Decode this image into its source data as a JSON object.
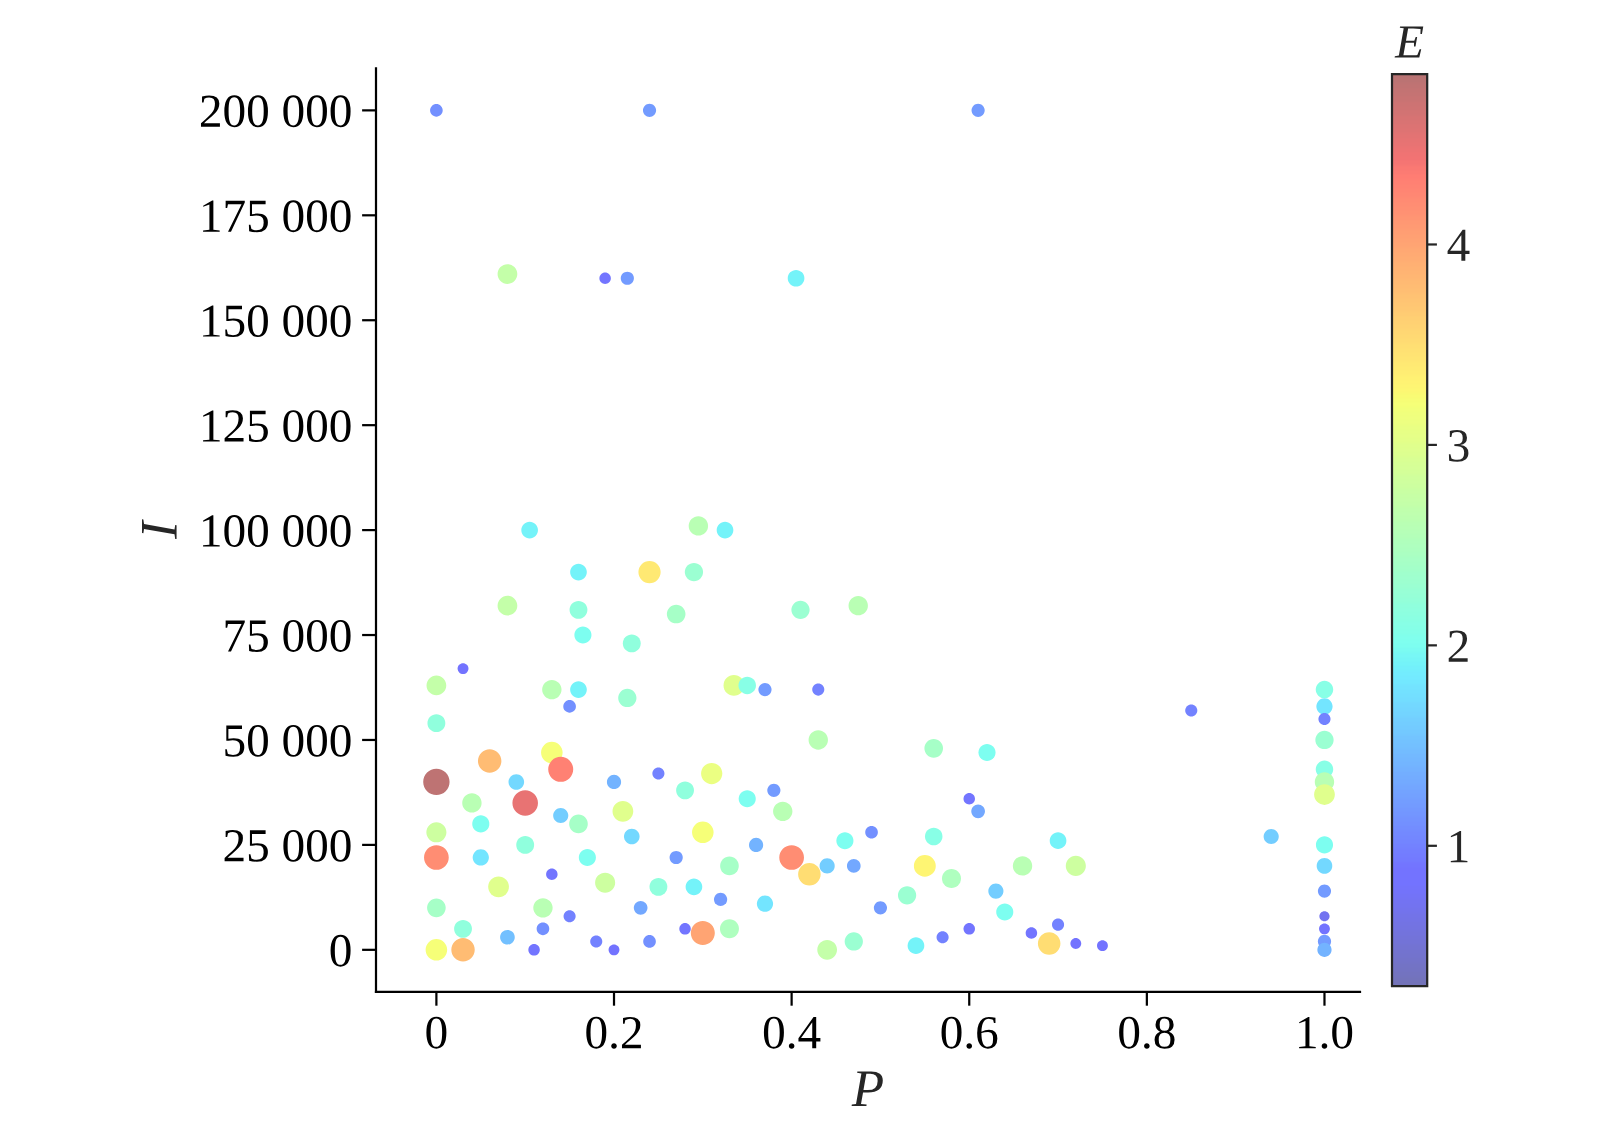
{
  "chart_data": {
    "type": "bubble",
    "sizes": [
      0.23,
      0.25,
      0.25,
      0.56,
      0.19,
      0.25,
      0.4,
      0.4,
      0.54,
      0.4,
      0.4,
      0.71,
      0.48,
      0.56,
      0.46,
      0.5,
      0.48,
      0.54,
      0.42,
      0.46,
      0.17,
      0.56,
      0.46,
      0.54,
      0.4,
      0.48,
      0.23,
      0.62,
      0.44,
      0.25,
      0.21,
      0.54,
      0.5,
      0.42,
      0.21,
      0.33,
      0.44,
      0.38,
      0.21,
      0.48,
      0.44,
      0.54,
      0.62,
      0.42,
      0.35,
      0.25,
      0.15,
      0.17,
      0.25,
      0.29,
      0.4,
      0.58,
      0.54,
      0.27,
      0.19,
      0.69,
      0.44,
      0.52,
      0.33,
      0.48,
      0.42,
      0.19,
      0.73,
      0.17,
      0.17,
      0.21,
      0.19,
      0.21,
      0.4,
      0.48,
      0.56,
      0.25,
      0.23,
      0.27,
      0.42,
      0.88,
      0.73,
      0.25,
      0.42,
      0.54,
      0.33,
      0.38,
      0.52,
      0.83,
      0.25,
      1,
      0.88,
      0.58,
      0.5,
      0.67,
      0.79,
      0.94,
      0.79,
      0.67,
      0.9,
      0.62,
      0.42,
      0.46,
      0.19,
      0.21,
      0.21,
      0.17,
      0.31,
      0.54,
      0.5,
      0.29,
      0.35,
      0.46,
      0.21,
      0.46,
      0.67,
      0.25,
      0.27,
      0.19,
      0.38,
      0.46,
      0.19,
      0.33,
      0.58,
      0.35,
      0.5,
      0.29,
      0.23,
      0.42,
      0.54,
      0.62,
      0.23,
      0.65,
      0.4
    ],
    "xlabel": "P",
    "ylabel": "I",
    "clabel": "E",
    "x": [
      0.0,
      0.24,
      0.61,
      0.08,
      0.19,
      0.215,
      0.405,
      0.105,
      0.295,
      0.325,
      0.16,
      0.24,
      0.29,
      0.08,
      0.16,
      0.27,
      0.41,
      0.475,
      0.165,
      0.22,
      0.03,
      0.0,
      0.0,
      0.13,
      0.16,
      0.215,
      0.15,
      0.335,
      0.35,
      0.37,
      0.43,
      0.43,
      0.56,
      0.62,
      0.85,
      0.94,
      1.0,
      1.0,
      1.0,
      1.0,
      1.0,
      1.0,
      1.0,
      1.0,
      1.0,
      1.0,
      1.0,
      1.0,
      1.0,
      1.0,
      0.7,
      0.72,
      0.66,
      0.61,
      0.6,
      0.55,
      0.56,
      0.58,
      0.63,
      0.53,
      0.64,
      0.67,
      0.69,
      0.72,
      0.75,
      0.7,
      0.6,
      0.57,
      0.54,
      0.47,
      0.44,
      0.5,
      0.49,
      0.47,
      0.46,
      0.4,
      0.42,
      0.38,
      0.35,
      0.39,
      0.44,
      0.37,
      0.33,
      0.3,
      0.32,
      0.0,
      0.0,
      0.0,
      0.0,
      0.0,
      0.03,
      0.1,
      0.06,
      0.13,
      0.14,
      0.07,
      0.05,
      0.1,
      0.13,
      0.15,
      0.18,
      0.2,
      0.08,
      0.12,
      0.16,
      0.2,
      0.22,
      0.25,
      0.25,
      0.28,
      0.3,
      0.27,
      0.23,
      0.28,
      0.05,
      0.03,
      0.11,
      0.14,
      0.19,
      0.09,
      0.33,
      0.36,
      0.24,
      0.17,
      0.04,
      0.21,
      0.12,
      0.31,
      0.29
    ],
    "values": [
      200000,
      200000,
      200000,
      161000,
      160000,
      160000,
      160000,
      100000,
      101000,
      100000,
      90000,
      90000,
      90000,
      82000,
      81000,
      80000,
      81000,
      82000,
      75000,
      73000,
      67000,
      63000,
      54000,
      62000,
      62000,
      60000,
      58000,
      63000,
      63000,
      62000,
      62000,
      50000,
      48000,
      47000,
      57000,
      27000,
      62000,
      58000,
      55000,
      50000,
      43000,
      40000,
      37000,
      25000,
      20000,
      14000,
      8000,
      5000,
      2000,
      0,
      26000,
      20000,
      20000,
      33000,
      36000,
      20000,
      27000,
      17000,
      14000,
      13000,
      9000,
      4000,
      1500,
      1500,
      1000,
      6000,
      5000,
      3000,
      1000,
      2000,
      0,
      10000,
      28000,
      20000,
      26000,
      22000,
      18000,
      38000,
      36000,
      33000,
      20000,
      11000,
      5000,
      4000,
      12000,
      40000,
      22000,
      28000,
      10000,
      0,
      0,
      35000,
      45000,
      47000,
      43000,
      15000,
      30000,
      25000,
      18000,
      8000,
      2000,
      0,
      3000,
      10000,
      30000,
      40000,
      27000,
      15000,
      42000,
      38000,
      28000,
      22000,
      10000,
      5000,
      22000,
      5000,
      0,
      32000,
      16000,
      40000,
      20000,
      25000,
      2000,
      22000,
      35000,
      33000,
      5000,
      42000,
      15000
    ],
    "cvalues": [
      1.1,
      1.2,
      1.2,
      2.7,
      0.9,
      1.2,
      1.9,
      1.9,
      2.6,
      1.9,
      1.9,
      3.4,
      2.3,
      2.7,
      2.2,
      2.4,
      2.3,
      2.6,
      2.0,
      2.2,
      0.8,
      2.7,
      2.2,
      2.6,
      1.9,
      2.3,
      1.1,
      3.0,
      2.1,
      1.2,
      1.0,
      2.6,
      2.4,
      2.0,
      1.0,
      1.6,
      2.1,
      1.8,
      1.0,
      2.3,
      2.1,
      2.6,
      3.0,
      2.0,
      1.7,
      1.2,
      0.7,
      0.8,
      1.2,
      1.4,
      1.9,
      2.8,
      2.6,
      1.3,
      0.9,
      3.3,
      2.1,
      2.5,
      1.6,
      2.3,
      2.0,
      0.9,
      3.5,
      0.8,
      0.8,
      1.0,
      0.9,
      1.0,
      1.9,
      2.3,
      2.7,
      1.2,
      1.1,
      1.3,
      2.0,
      4.2,
      3.5,
      1.2,
      2.0,
      2.6,
      1.6,
      1.8,
      2.5,
      4.0,
      1.2,
      4.8,
      4.2,
      2.8,
      2.4,
      3.2,
      3.8,
      4.5,
      3.8,
      3.2,
      4.3,
      3.0,
      2.0,
      2.2,
      0.9,
      1.0,
      1.0,
      0.8,
      1.5,
      2.6,
      2.4,
      1.4,
      1.7,
      2.2,
      1.0,
      2.2,
      3.2,
      1.2,
      1.3,
      0.9,
      1.8,
      2.2,
      0.9,
      1.6,
      2.8,
      1.7,
      2.4,
      1.4,
      1.1,
      2.0,
      2.6,
      3.0,
      1.1,
      3.1,
      1.9
    ],
    "xlim": [
      -0.068,
      1.04
    ],
    "ylim": [
      -10000,
      210000
    ],
    "xticks": [
      {
        "value": 0,
        "label": "0"
      },
      0.2,
      0.4,
      0.6,
      0.8,
      {
        "value": 1,
        "label": "1.0"
      }
    ],
    "yticks": [
      {
        "value": 0,
        "label": "0"
      },
      {
        "value": 25000,
        "label": "25 000"
      },
      {
        "value": 50000,
        "label": "50 000"
      },
      {
        "value": 75000,
        "label": "75 000"
      },
      {
        "value": 100000,
        "label": "100 000"
      },
      {
        "value": 125000,
        "label": "125 000"
      },
      {
        "value": 150000,
        "label": "150 000"
      },
      {
        "value": 175000,
        "label": "175 000"
      },
      {
        "value": 200000,
        "label": "200 000"
      }
    ],
    "clim": [
      0.3,
      4.85
    ],
    "cticks": [
      1,
      2,
      3,
      4
    ],
    "grid": false
  }
}
